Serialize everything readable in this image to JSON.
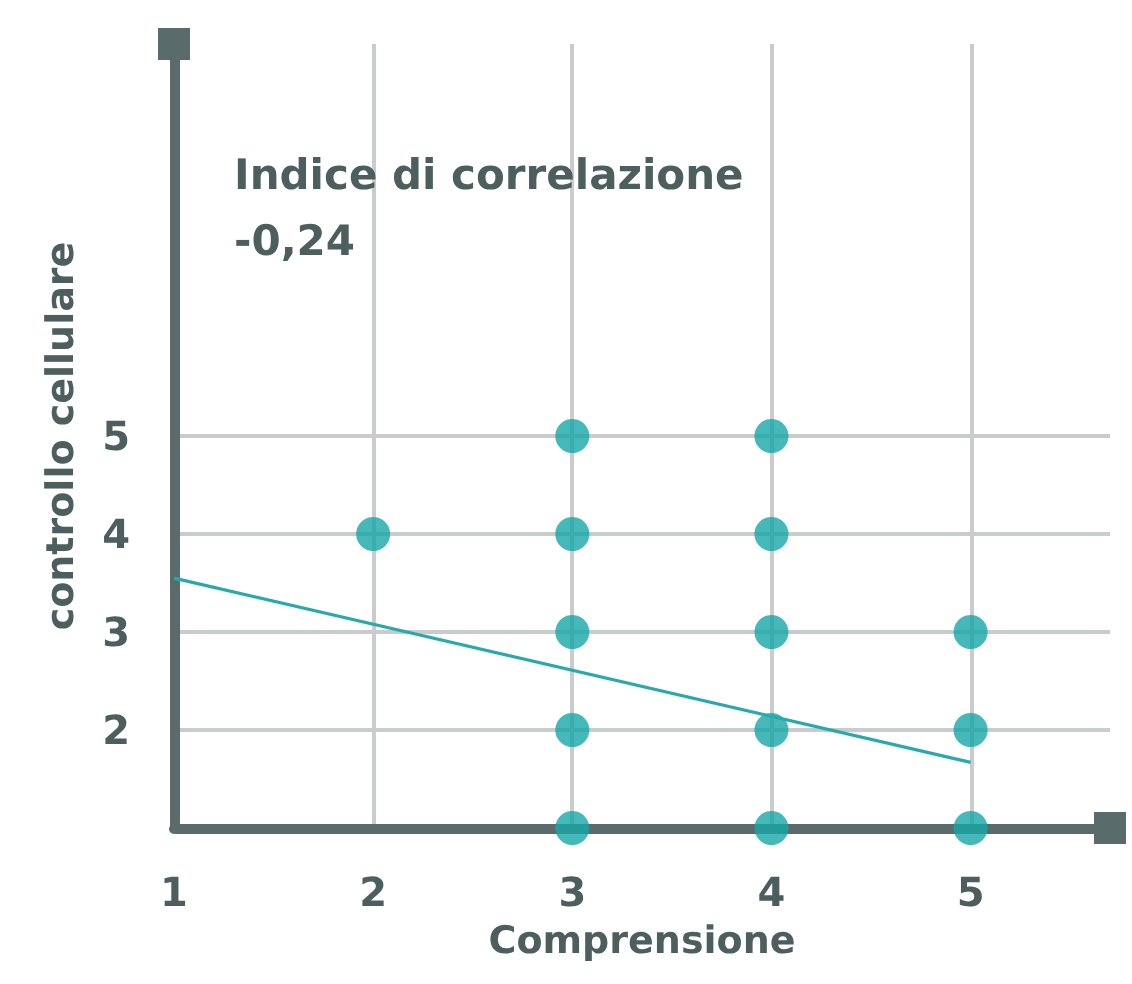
{
  "chart_data": {
    "type": "scatter",
    "title": "Indice di correlazione",
    "subtitle": "-0,24",
    "xlabel": "Comprensione",
    "ylabel": "controllo cellulare",
    "xlim": [
      1,
      5.7
    ],
    "xticks": [
      1,
      2,
      3,
      4,
      5
    ],
    "ylim": [
      1,
      9
    ],
    "yticks": [
      2,
      3,
      4,
      5
    ],
    "grid": true,
    "marker": "circle",
    "series": [
      {
        "color": "#17a6a8",
        "x": [
          2,
          3,
          3,
          3,
          3,
          3,
          4,
          4,
          4,
          4,
          4,
          5,
          5,
          5
        ],
        "values": [
          4,
          5,
          4,
          3,
          2,
          1,
          5,
          4,
          3,
          2,
          1,
          3,
          2,
          1
        ]
      },
      {
        "type": "line",
        "color": "#2aa9ad",
        "marker": "none",
        "line_style": "solid",
        "x": [
          1,
          5
        ],
        "values": [
          3.55,
          1.67
        ]
      }
    ]
  }
}
